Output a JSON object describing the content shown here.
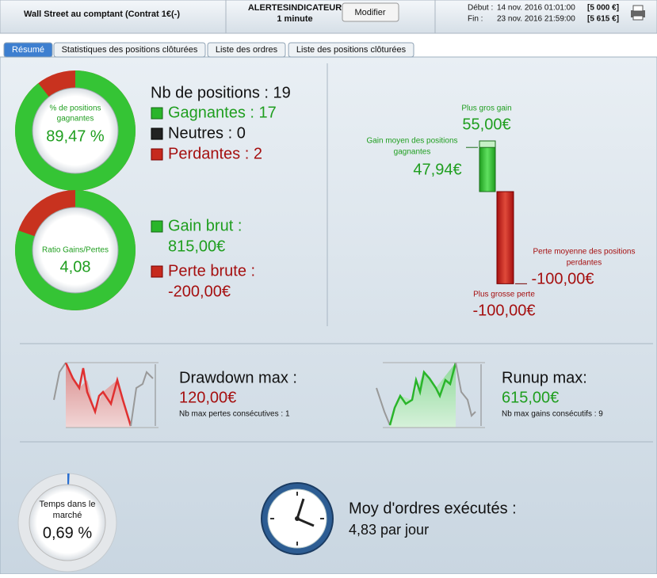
{
  "header": {
    "title": "Wall Street au comptant (Contrat 1€(-)",
    "alert_name": "ALERTESINDICATEUR",
    "alert_period": "1 minute",
    "button": "Modifier",
    "start_label": "Début :",
    "start_date": "14 nov. 2016 01:01:00",
    "start_capital": "[5 000 €]",
    "end_label": "Fin :",
    "end_date": "23 nov. 2016 21:59:00",
    "end_capital": "[5 615 €]"
  },
  "tabs": [
    "Résumé",
    "Statistiques des positions clôturées",
    "Liste des ordres",
    "Liste des positions clôturées"
  ],
  "positions": {
    "donut_label": [
      "% de positions",
      "gagnantes"
    ],
    "win_rate": {
      "value": 89.47,
      "label": "89,47 %"
    },
    "total": "Nb de positions : 19",
    "winners": "Gagnantes : 17",
    "neutral": "Neutres : 0",
    "losers": "Perdantes : 2"
  },
  "gains": {
    "donut_label": "Ratio Gains/Pertes",
    "ratio": "4,08",
    "gross_gain_label": "Gain brut :",
    "gross_gain": {
      "value": 815,
      "label": "815,00€"
    },
    "gross_loss_label": "Perte brute :",
    "gross_loss": {
      "value": -200,
      "label": "-200,00€"
    }
  },
  "extremes": {
    "max_gain_label": "Plus gros gain",
    "max_gain": {
      "value": 55,
      "label": "55,00€"
    },
    "avg_gain_label": [
      "Gain moyen des positions",
      "gagnantes"
    ],
    "avg_gain": {
      "value": 47.94,
      "label": "47,94€"
    },
    "avg_loss_label": [
      "Perte moyenne des positions",
      "perdantes"
    ],
    "avg_loss": {
      "value": -100,
      "label": "-100,00€"
    },
    "max_loss_label": "Plus grosse perte",
    "max_loss": {
      "value": -100,
      "label": "-100,00€"
    }
  },
  "drawdown": {
    "label": "Drawdown max :",
    "value": "120,00€",
    "note": "Nb max pertes consécutives : 1"
  },
  "runup": {
    "label": "Runup max:",
    "value": "615,00€",
    "note": "Nb max gains consécutifs : 9"
  },
  "time": {
    "label": [
      "Temps dans le",
      "marché"
    ],
    "value": {
      "value": 0.69,
      "label": "0,69 %"
    }
  },
  "orders": {
    "label": "Moy d'ordres exécutés :",
    "value": "4,83 par jour"
  }
}
